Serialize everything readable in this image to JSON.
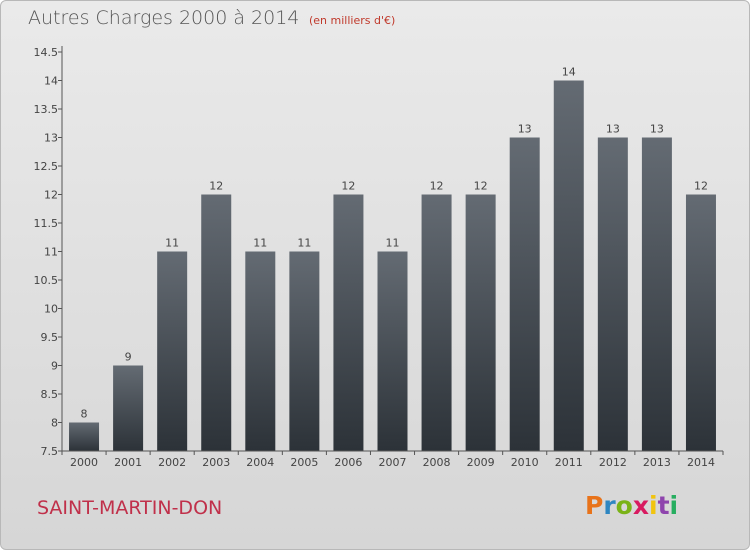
{
  "header": {
    "title": "Autres Charges 2000 à 2014",
    "subtitle": "(en milliers d'€)"
  },
  "footer": {
    "commune": "SAINT-MARTIN-DON",
    "logo": "Proxiti",
    "logo_colors": [
      "#e8731a",
      "#2e86c1",
      "#7ab317",
      "#d81b60",
      "#f1c40f",
      "#8e44ad",
      "#27ae60"
    ]
  },
  "colors": {
    "bar_top": "#646b73",
    "bar_bottom": "#2c3238",
    "axis": "#555555",
    "background_top": "#eaeaea",
    "background_bottom": "#d6d6d6"
  },
  "chart_data": {
    "type": "bar",
    "title": "Autres Charges 2000 à 2014",
    "subtitle": "(en milliers d'€)",
    "categories": [
      "2000",
      "2001",
      "2002",
      "2003",
      "2004",
      "2005",
      "2006",
      "2007",
      "2008",
      "2009",
      "2010",
      "2011",
      "2012",
      "2013",
      "2014"
    ],
    "values": [
      8,
      9,
      11,
      12,
      11,
      11,
      12,
      11,
      12,
      12,
      13,
      14,
      13,
      13,
      12
    ],
    "data_labels": [
      "8",
      "9",
      "11",
      "12",
      "11",
      "11",
      "12",
      "11",
      "12",
      "12",
      "13",
      "14",
      "13",
      "13",
      "12"
    ],
    "yticks": [
      "7.5",
      "8",
      "8.5",
      "9",
      "9.5",
      "10",
      "10.5",
      "11",
      "11.5",
      "12",
      "12.5",
      "13",
      "13.5",
      "14",
      "14.5"
    ],
    "ylim": [
      7.5,
      14.5
    ],
    "grid": false,
    "legend": "none"
  }
}
